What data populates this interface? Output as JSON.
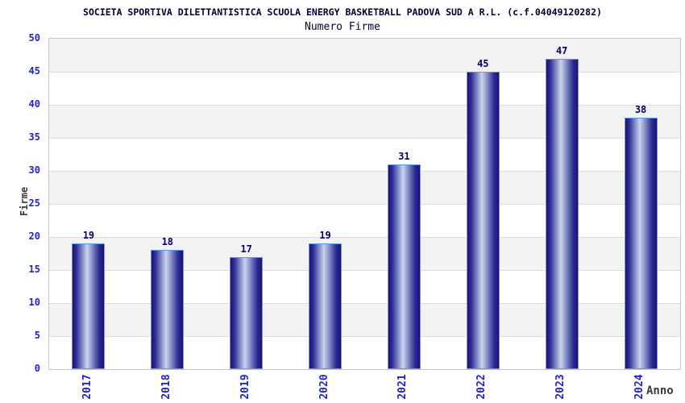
{
  "chart_data": {
    "type": "bar",
    "title": "SOCIETA SPORTIVA DILETTANTISTICA SCUOLA ENERGY BASKETBALL PADOVA SUD A R.L. (c.f.04049120282)",
    "subtitle": "Numero Firme",
    "xlabel": "Anno",
    "ylabel": "Firme",
    "categories": [
      "2017",
      "2018",
      "2019",
      "2020",
      "2021",
      "2022",
      "2023",
      "2024"
    ],
    "values": [
      19,
      18,
      17,
      19,
      31,
      45,
      47,
      38
    ],
    "ylim": [
      0,
      50
    ],
    "ytick_step": 5,
    "grid": "horizontal",
    "band_alternation": "gray-white stripes every 5 units, top band gray",
    "legend": "none",
    "bar_labels_shown": true,
    "colors": {
      "title_navy": "#000033",
      "value_navy": "#000066",
      "tick_blue": "#2222cc",
      "axis_label_dark": "#3a3a3a",
      "plot_border": "#c6c6c6",
      "band_gray": "#f2f2f2",
      "grid_gray": "#dcdcdc",
      "bar_dark": "#14147a",
      "bar_mid": "#8f9ace",
      "bar_light": "#cdd3ec",
      "bar_border": "#5b9bf0"
    }
  }
}
